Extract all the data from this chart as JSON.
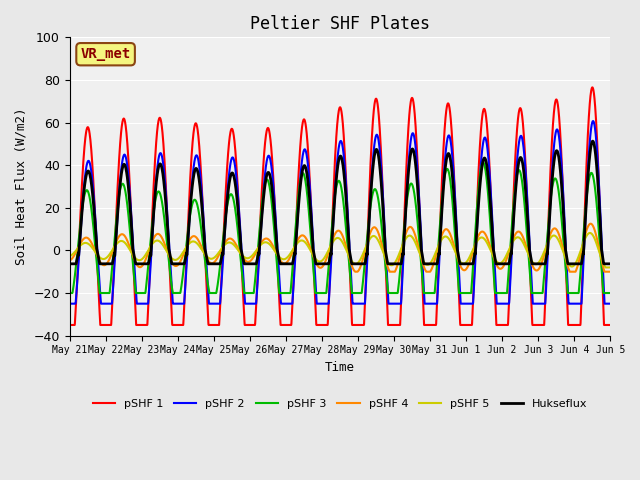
{
  "title": "Peltier SHF Plates",
  "xlabel": "Time",
  "ylabel": "Soil Heat Flux (W/m2)",
  "ylim": [
    -40,
    100
  ],
  "xlim": [
    0,
    15
  ],
  "x_tick_labels": [
    "May 21",
    "May 22",
    "May 23",
    "May 24",
    "May 25",
    "May 26",
    "May 27",
    "May 28",
    "May 29",
    "May 30",
    "May 31",
    "Jun 1",
    "Jun 2",
    "Jun 3",
    "Jun 4",
    "Jun 5"
  ],
  "background_color": "#e8e8e8",
  "plot_bg_color": "#f0f0f0",
  "annotation_text": "VR_met",
  "annotation_bg": "#f5f580",
  "annotation_border": "#8b4513",
  "annotation_text_color": "#8b0000",
  "series": {
    "pSHF 1": {
      "color": "#ff0000",
      "lw": 1.5
    },
    "pSHF 2": {
      "color": "#0000ff",
      "lw": 1.5
    },
    "pSHF 3": {
      "color": "#00bb00",
      "lw": 1.5
    },
    "pSHF 4": {
      "color": "#ff8800",
      "lw": 1.5
    },
    "pSHF 5": {
      "color": "#cccc00",
      "lw": 1.5
    },
    "Hukseflux": {
      "color": "#000000",
      "lw": 2.0
    }
  },
  "legend_order": [
    "pSHF 1",
    "pSHF 2",
    "pSHF 3",
    "pSHF 4",
    "pSHF 5",
    "Hukseflux"
  ]
}
